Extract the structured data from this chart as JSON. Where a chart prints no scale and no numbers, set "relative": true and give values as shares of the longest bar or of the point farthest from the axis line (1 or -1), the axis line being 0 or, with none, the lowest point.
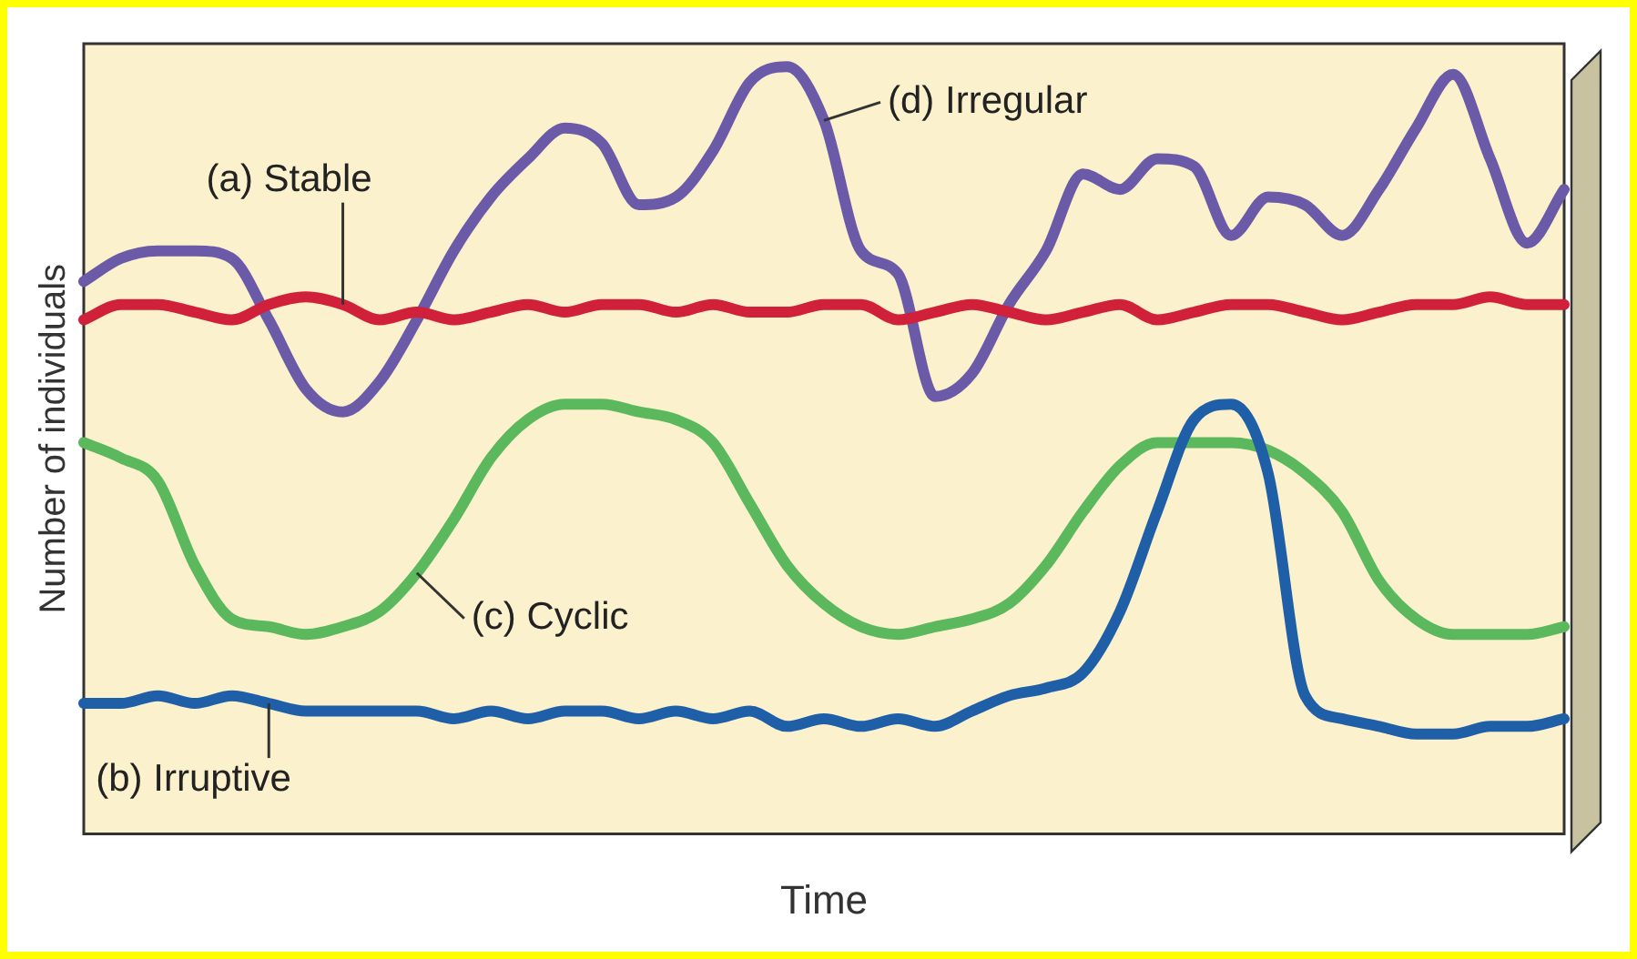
{
  "chart_data": {
    "type": "line",
    "relative": true,
    "xlabel": "Time",
    "ylabel": "Number of individuals",
    "grid": false,
    "legend": false,
    "marker": "none",
    "line_style": "solid",
    "categories": [
      null,
      null,
      null,
      null,
      null,
      null,
      null,
      null,
      null,
      null,
      null,
      null,
      null,
      null,
      null,
      null,
      null,
      null,
      null,
      null,
      null,
      null,
      null,
      null,
      null,
      null,
      null,
      null,
      null,
      null,
      null,
      null,
      null,
      null,
      null,
      null,
      null,
      null,
      null,
      null,
      null
    ],
    "series": [
      {
        "name": "(a) Stable",
        "color": "#d0203a",
        "values": [
          0.67,
          0.69,
          0.69,
          0.68,
          0.67,
          0.69,
          0.7,
          0.69,
          0.67,
          0.68,
          0.67,
          0.68,
          0.69,
          0.68,
          0.69,
          0.69,
          0.68,
          0.69,
          0.68,
          0.68,
          0.69,
          0.69,
          0.67,
          0.68,
          0.69,
          0.68,
          0.67,
          0.68,
          0.69,
          0.67,
          0.68,
          0.69,
          0.69,
          0.68,
          0.67,
          0.68,
          0.69,
          0.69,
          0.7,
          0.69,
          0.69
        ]
      },
      {
        "name": "(b) Irruptive",
        "color": "#1f5fa8",
        "values": [
          0.17,
          0.17,
          0.18,
          0.17,
          0.18,
          0.17,
          0.16,
          0.16,
          0.16,
          0.16,
          0.15,
          0.16,
          0.15,
          0.16,
          0.16,
          0.15,
          0.16,
          0.15,
          0.16,
          0.14,
          0.15,
          0.14,
          0.15,
          0.14,
          0.16,
          0.18,
          0.19,
          0.21,
          0.29,
          0.42,
          0.54,
          0.56,
          0.47,
          0.18,
          0.15,
          0.14,
          0.13,
          0.13,
          0.14,
          0.14,
          0.15
        ]
      },
      {
        "name": "(c) Cyclic",
        "color": "#5cb85c",
        "values": [
          0.51,
          0.49,
          0.46,
          0.35,
          0.28,
          0.27,
          0.26,
          0.27,
          0.29,
          0.34,
          0.41,
          0.49,
          0.54,
          0.56,
          0.56,
          0.55,
          0.54,
          0.51,
          0.43,
          0.35,
          0.3,
          0.27,
          0.26,
          0.27,
          0.28,
          0.3,
          0.35,
          0.42,
          0.48,
          0.51,
          0.51,
          0.51,
          0.5,
          0.47,
          0.42,
          0.33,
          0.28,
          0.26,
          0.26,
          0.26,
          0.27
        ]
      },
      {
        "name": "(d) Irregular",
        "color": "#6a5aa8",
        "values": [
          0.72,
          0.75,
          0.76,
          0.76,
          0.75,
          0.67,
          0.58,
          0.55,
          0.59,
          0.67,
          0.76,
          0.83,
          0.88,
          0.92,
          0.9,
          0.82,
          0.83,
          0.89,
          0.98,
          1,
          0.93,
          0.76,
          0.73,
          0.57,
          0.6,
          0.69,
          0.76,
          0.86,
          0.84,
          0.88,
          0.87,
          0.78,
          0.83,
          0.82,
          0.78,
          0.84,
          0.92,
          0.99,
          0.88,
          0.77,
          0.84
        ]
      }
    ]
  }
}
